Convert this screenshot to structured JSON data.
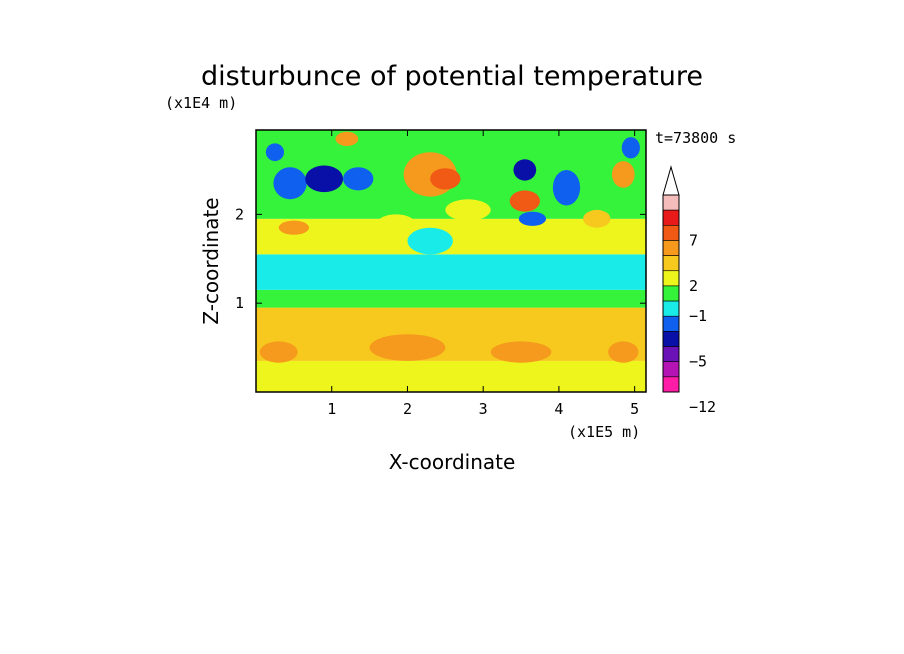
{
  "chart_data": {
    "type": "heatmap",
    "title": "disturbunce of potential temperature",
    "xlabel": "X-coordinate",
    "ylabel": "Z-coordinate",
    "x_unit": "(x1E5 m)",
    "y_unit": "(x1E4 m)",
    "time_label": "t=73800 s",
    "xlim": [
      0,
      5.15
    ],
    "ylim": [
      0,
      2.95
    ],
    "x_ticks": [
      "1",
      "2",
      "3",
      "4",
      "5"
    ],
    "y_ticks": [
      "1",
      "2"
    ],
    "grid": false,
    "colorbar": {
      "placement": "right",
      "tick_labels": [
        "7",
        "2",
        "−1",
        "−5",
        "−12"
      ],
      "colors": [
        "#ffffff",
        "#f5bcbc",
        "#e81a1a",
        "#f05a14",
        "#f59a1c",
        "#f7c81e",
        "#eef51c",
        "#35f23a",
        "#19ece8",
        "#1060f0",
        "#0810a8",
        "#6a12b8",
        "#b414b4",
        "#ff1ca6"
      ]
    },
    "palette": {
      "pos4": "#f05a14",
      "pos3": "#f59a1c",
      "pos2": "#f7c81e",
      "pos1": "#eef51c",
      "neu": "#35f23a",
      "neg1": "#19ece8",
      "neg2": "#1060f0",
      "neg3": "#0810a8",
      "neg4": "#6a12b8"
    },
    "field": {
      "description_bands": [
        {
          "z_from": 0.0,
          "z_to": 0.35,
          "level": "pos1"
        },
        {
          "z_from": 0.35,
          "z_to": 0.95,
          "level": "pos2"
        },
        {
          "z_from": 0.95,
          "z_to": 1.15,
          "level": "neu"
        },
        {
          "z_from": 1.15,
          "z_to": 1.55,
          "level": "neg1"
        },
        {
          "z_from": 1.55,
          "z_to": 1.95,
          "level": "pos1"
        },
        {
          "z_from": 1.95,
          "z_to": 2.95,
          "level": "neu"
        }
      ],
      "blobs": [
        {
          "x": 0.45,
          "z": 2.35,
          "rx": 0.22,
          "rz": 0.18,
          "level": "neg2"
        },
        {
          "x": 0.9,
          "z": 2.4,
          "rx": 0.25,
          "rz": 0.15,
          "level": "neg3"
        },
        {
          "x": 1.35,
          "z": 2.4,
          "rx": 0.2,
          "rz": 0.13,
          "level": "neg2"
        },
        {
          "x": 0.25,
          "z": 2.7,
          "rx": 0.12,
          "rz": 0.1,
          "level": "neg2"
        },
        {
          "x": 1.2,
          "z": 2.85,
          "rx": 0.15,
          "rz": 0.08,
          "level": "pos3"
        },
        {
          "x": 2.3,
          "z": 2.45,
          "rx": 0.35,
          "rz": 0.25,
          "level": "pos3"
        },
        {
          "x": 2.5,
          "z": 2.4,
          "rx": 0.2,
          "rz": 0.12,
          "level": "pos4"
        },
        {
          "x": 3.55,
          "z": 2.5,
          "rx": 0.15,
          "rz": 0.12,
          "level": "neg3"
        },
        {
          "x": 3.55,
          "z": 2.15,
          "rx": 0.2,
          "rz": 0.12,
          "level": "pos4"
        },
        {
          "x": 3.65,
          "z": 1.95,
          "rx": 0.18,
          "rz": 0.08,
          "level": "neg2"
        },
        {
          "x": 4.1,
          "z": 2.3,
          "rx": 0.18,
          "rz": 0.2,
          "level": "neg2"
        },
        {
          "x": 4.85,
          "z": 2.45,
          "rx": 0.15,
          "rz": 0.15,
          "level": "pos3"
        },
        {
          "x": 4.95,
          "z": 2.75,
          "rx": 0.12,
          "rz": 0.12,
          "level": "neg2"
        },
        {
          "x": 0.5,
          "z": 1.85,
          "rx": 0.2,
          "rz": 0.08,
          "level": "pos3"
        },
        {
          "x": 4.5,
          "z": 1.95,
          "rx": 0.18,
          "rz": 0.1,
          "level": "pos2"
        },
        {
          "x": 2.8,
          "z": 2.05,
          "rx": 0.3,
          "rz": 0.12,
          "level": "pos1"
        },
        {
          "x": 1.85,
          "z": 1.9,
          "rx": 0.25,
          "rz": 0.1,
          "level": "pos1"
        },
        {
          "x": 0.3,
          "z": 0.45,
          "rx": 0.25,
          "rz": 0.12,
          "level": "pos3"
        },
        {
          "x": 2.0,
          "z": 0.5,
          "rx": 0.5,
          "rz": 0.15,
          "level": "pos3"
        },
        {
          "x": 3.5,
          "z": 0.45,
          "rx": 0.4,
          "rz": 0.12,
          "level": "pos3"
        },
        {
          "x": 4.85,
          "z": 0.45,
          "rx": 0.2,
          "rz": 0.12,
          "level": "pos3"
        },
        {
          "x": 2.3,
          "z": 1.7,
          "rx": 0.3,
          "rz": 0.15,
          "level": "neg1"
        }
      ]
    }
  }
}
